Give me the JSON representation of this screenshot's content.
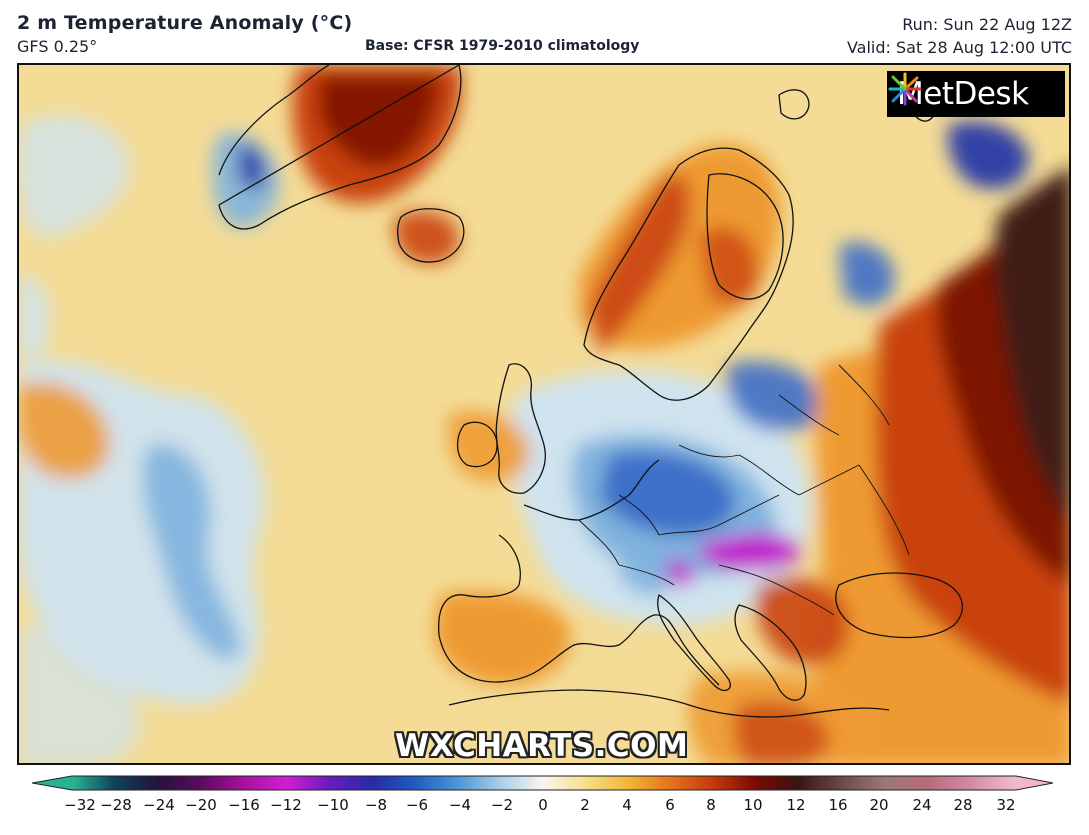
{
  "header": {
    "title": "2 m Temperature Anomaly (°C)",
    "model": "GFS 0.25°",
    "base": "Base: CFSR 1979-2010 climatology",
    "run": "Run: Sun 22 Aug 12Z",
    "valid": "Valid: Sat 28 Aug 12:00 UTC"
  },
  "branding": {
    "logo_text": "MetDesk",
    "watermark": "WXCHARTS.COM"
  },
  "colorbar": {
    "unit": "°C",
    "range": [
      -32,
      32
    ],
    "tick_labels": [
      "−32",
      "−28",
      "−24",
      "−20",
      "−16",
      "−12",
      "−10",
      "−8",
      "−6",
      "−4",
      "−2",
      "0",
      "2",
      "4",
      "6",
      "8",
      "10",
      "12",
      "16",
      "20",
      "24",
      "28",
      "32"
    ],
    "color_stops": [
      {
        "value": "-32",
        "color": "#2ab393"
      },
      {
        "value": "-28",
        "color": "#0f3f5a"
      },
      {
        "value": "-24",
        "color": "#24123e"
      },
      {
        "value": "-20",
        "color": "#5a0c5e"
      },
      {
        "value": "-16",
        "color": "#a8109e"
      },
      {
        "value": "-12",
        "color": "#d21ed2"
      },
      {
        "value": "-10",
        "color": "#6a1cc0"
      },
      {
        "value": "-8",
        "color": "#2a2aa6"
      },
      {
        "value": "-6",
        "color": "#1f5bbf"
      },
      {
        "value": "-4",
        "color": "#4a95d6"
      },
      {
        "value": "-2",
        "color": "#a9cde8"
      },
      {
        "value": "0",
        "color": "#f6f6f0"
      },
      {
        "value": "2",
        "color": "#f6e08e"
      },
      {
        "value": "4",
        "color": "#f2b636"
      },
      {
        "value": "6",
        "color": "#e4731a"
      },
      {
        "value": "8",
        "color": "#c4380e"
      },
      {
        "value": "10",
        "color": "#7a0a02"
      },
      {
        "value": "12",
        "color": "#3a1414"
      },
      {
        "value": "16",
        "color": "#6a4a48"
      },
      {
        "value": "20",
        "color": "#9a7876"
      },
      {
        "value": "24",
        "color": "#b86a7c"
      },
      {
        "value": "28",
        "color": "#d08aa0"
      },
      {
        "value": "32",
        "color": "#f0b8c8"
      }
    ]
  },
  "map": {
    "variable": "2 m temperature anomaly",
    "region": "Europe / North Atlantic",
    "colors": {
      "warm_base": "#f4dc96",
      "cool_light": "#cfe3ef",
      "cool_mid": "#7fb3de",
      "cool_strong": "#3d6fc8",
      "cold_core": "#2838a8",
      "magenta": "#c21ccc",
      "orange": "#ee9a32",
      "red": "#c9430f",
      "deep_red": "#7d1205",
      "brown": "#3f1a12",
      "coast": "#111111"
    }
  }
}
